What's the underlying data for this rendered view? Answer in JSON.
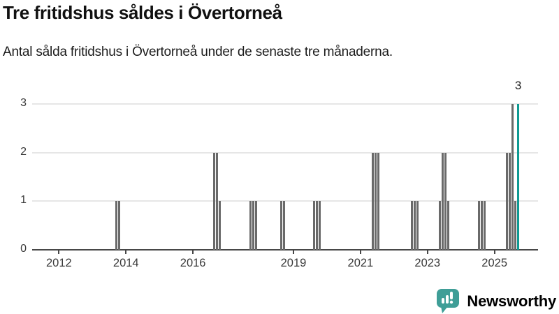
{
  "header": {
    "title": "Tre fritidshus såldes i Övertorneå",
    "subtitle": "Antal sålda fritidshus i Övertorneå under de senaste tre månaderna."
  },
  "branding": {
    "name": "Newsworthy",
    "icon": "newsworthy-speech-bubble-chart-icon"
  },
  "colors": {
    "bar": "#6a6a6a",
    "highlight": "#0f9a93",
    "brand": "#3f9e97",
    "axis": "#474747",
    "gridline": "#e6e6e6",
    "text": "#1c1c1c",
    "tick_text": "#3a3a3a"
  },
  "chart_data": {
    "type": "bar",
    "title": "Tre fritidshus såldes i Övertorneå",
    "subtitle": "Antal sålda fritidshus i Övertorneå under de senaste tre månaderna.",
    "xlabel": "",
    "ylabel": "",
    "grid": true,
    "legend": false,
    "xlim": [
      2011.2,
      2026.3
    ],
    "ylim": [
      0,
      3.13
    ],
    "yticks": [
      "0",
      "1",
      "2",
      "3"
    ],
    "xticks": [
      {
        "label": "2012",
        "year": 2012
      },
      {
        "label": "2014",
        "year": 2014
      },
      {
        "label": "2016",
        "year": 2016
      },
      {
        "label": "2019",
        "year": 2019
      },
      {
        "label": "2021",
        "year": 2021
      },
      {
        "label": "2023",
        "year": 2023
      },
      {
        "label": "2025",
        "year": 2025
      }
    ],
    "annotation": {
      "text": "3"
    },
    "points": [
      {
        "date": "2013-09",
        "value": 1
      },
      {
        "date": "2013-10",
        "value": 1
      },
      {
        "date": "2016-08",
        "value": 2
      },
      {
        "date": "2016-09",
        "value": 2
      },
      {
        "date": "2016-10",
        "value": 1
      },
      {
        "date": "2017-09",
        "value": 1
      },
      {
        "date": "2017-10",
        "value": 1
      },
      {
        "date": "2017-11",
        "value": 1
      },
      {
        "date": "2018-08",
        "value": 1
      },
      {
        "date": "2018-09",
        "value": 1
      },
      {
        "date": "2019-08",
        "value": 1
      },
      {
        "date": "2019-09",
        "value": 1
      },
      {
        "date": "2019-10",
        "value": 1
      },
      {
        "date": "2021-05",
        "value": 2
      },
      {
        "date": "2021-06",
        "value": 2
      },
      {
        "date": "2021-07",
        "value": 2
      },
      {
        "date": "2022-07",
        "value": 1
      },
      {
        "date": "2022-08",
        "value": 1
      },
      {
        "date": "2022-09",
        "value": 1
      },
      {
        "date": "2023-05",
        "value": 1
      },
      {
        "date": "2023-06",
        "value": 2
      },
      {
        "date": "2023-07",
        "value": 2
      },
      {
        "date": "2023-08",
        "value": 1
      },
      {
        "date": "2024-07",
        "value": 1
      },
      {
        "date": "2024-08",
        "value": 1
      },
      {
        "date": "2024-09",
        "value": 1
      },
      {
        "date": "2025-05",
        "value": 2
      },
      {
        "date": "2025-06",
        "value": 2
      },
      {
        "date": "2025-07",
        "value": 3
      },
      {
        "date": "2025-08",
        "value": 1
      },
      {
        "date": "2025-09",
        "value": 3,
        "highlight": true
      }
    ]
  }
}
